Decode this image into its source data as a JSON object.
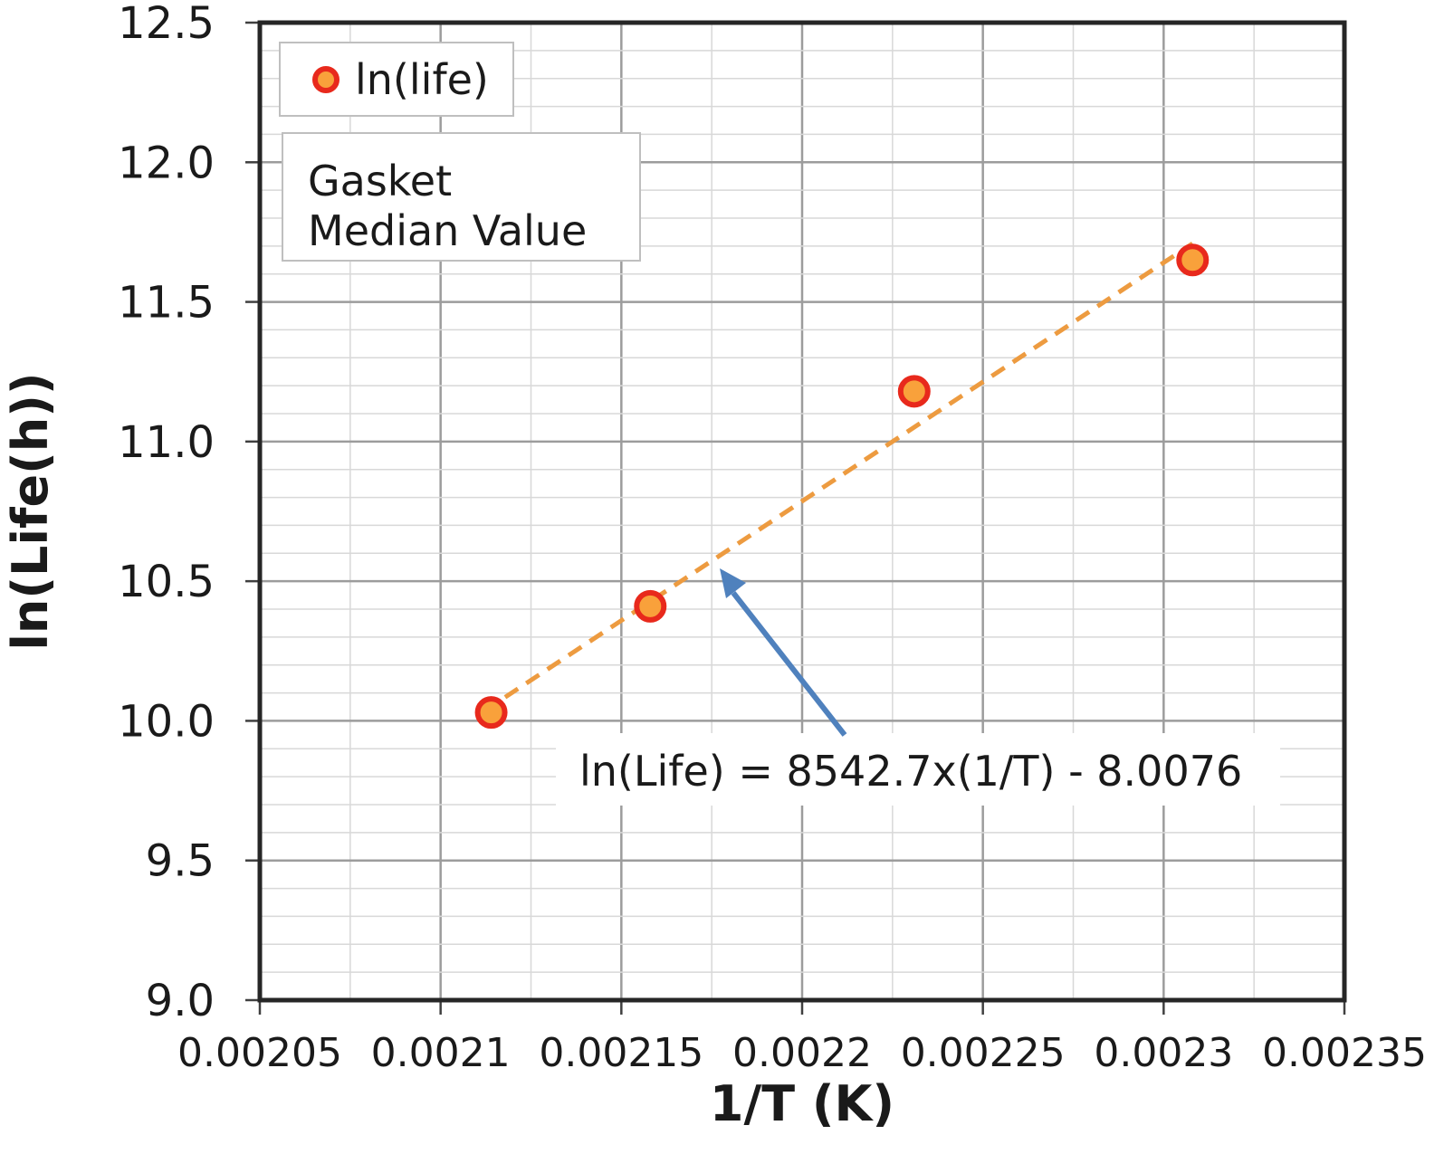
{
  "figure": {
    "background": "#FFFFFF"
  },
  "chart_data": {
    "type": "scatter",
    "title": "",
    "xlabel": "1/T (K)",
    "ylabel": "ln(Life(h))",
    "xlim": [
      0.00205,
      0.00235
    ],
    "ylim": [
      9.0,
      12.5
    ],
    "x_major_step": 5e-05,
    "x_minor_step": 2.5e-05,
    "y_major_step": 0.5,
    "y_minor_step": 0.1,
    "x_tick_labels": [
      "0.00205",
      "0.0021",
      "0.00215",
      "0.0022",
      "0.00225",
      "0.0023",
      "0.00235"
    ],
    "y_tick_labels": [
      "9.0",
      "9.5",
      "10.0",
      "10.5",
      "11.0",
      "11.5",
      "12.0",
      "12.5"
    ],
    "grid": {
      "major_color": "#9C9C9C",
      "minor_color": "#D8D8D8",
      "border_color": "#262626",
      "tick_color": "#404040"
    },
    "series": [
      {
        "name": "ln(life)",
        "marker": {
          "shape": "circle",
          "fill": "#F9A13B",
          "stroke": "#E8291C"
        },
        "points": [
          {
            "x": 0.002114,
            "y": 10.03
          },
          {
            "x": 0.002158,
            "y": 10.41
          },
          {
            "x": 0.002231,
            "y": 11.18
          },
          {
            "x": 0.002308,
            "y": 11.65
          }
        ]
      }
    ],
    "trendline": {
      "equation_label": "ln(Life) = 8542.7x(1/T) - 8.0076",
      "slope": 8542.7,
      "intercept": -8.0076,
      "x_start": 0.002112,
      "x_end": 0.002308,
      "color": "#ED9B40",
      "style": "dashed"
    },
    "legend": {
      "label": "ln(life)",
      "position": "top-left"
    },
    "annotations": {
      "text_box_lines": [
        "Gasket",
        "Median Value"
      ],
      "arrow_color": "#4F81BD"
    }
  }
}
